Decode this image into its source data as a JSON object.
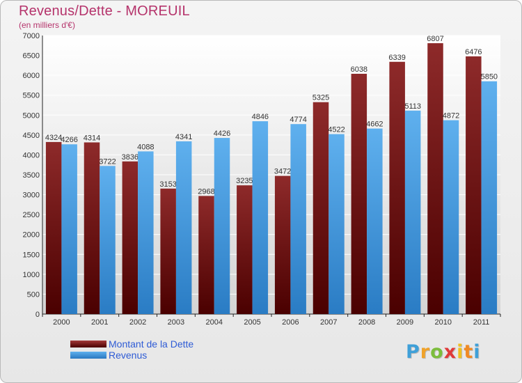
{
  "chart_data": {
    "type": "bar",
    "title": "Revenus/Dette - MOREUIL",
    "subtitle": "(en milliers d'€)",
    "categories": [
      "2000",
      "2001",
      "2002",
      "2003",
      "2004",
      "2005",
      "2006",
      "2007",
      "2008",
      "2009",
      "2010",
      "2011"
    ],
    "series": [
      {
        "name": "Montant de la Dette",
        "color": "#7b1c1c",
        "values": [
          4324,
          4314,
          3836,
          3153,
          2968,
          3235,
          3472,
          5325,
          6038,
          6339,
          6807,
          6476
        ]
      },
      {
        "name": "Revenus",
        "color": "#3d93d8",
        "values": [
          4266,
          3722,
          4088,
          4341,
          4426,
          4846,
          4774,
          4522,
          4662,
          5113,
          4872,
          5850
        ]
      }
    ],
    "ylim": [
      0,
      7000
    ],
    "yticks": [
      0,
      500,
      1000,
      1500,
      2000,
      2500,
      3000,
      3500,
      4000,
      4500,
      5000,
      5500,
      6000,
      6500,
      7000
    ],
    "grid": true,
    "legend": "bottom-left"
  },
  "logo": {
    "letters": [
      "P",
      "r",
      "o",
      "x",
      "i",
      "t",
      "i"
    ],
    "colors": [
      "#3fa0d8",
      "#f0a22a",
      "#7cbd3c",
      "#e03a3a",
      "#f0c020",
      "#f08a24",
      "#3fa0d8"
    ]
  }
}
